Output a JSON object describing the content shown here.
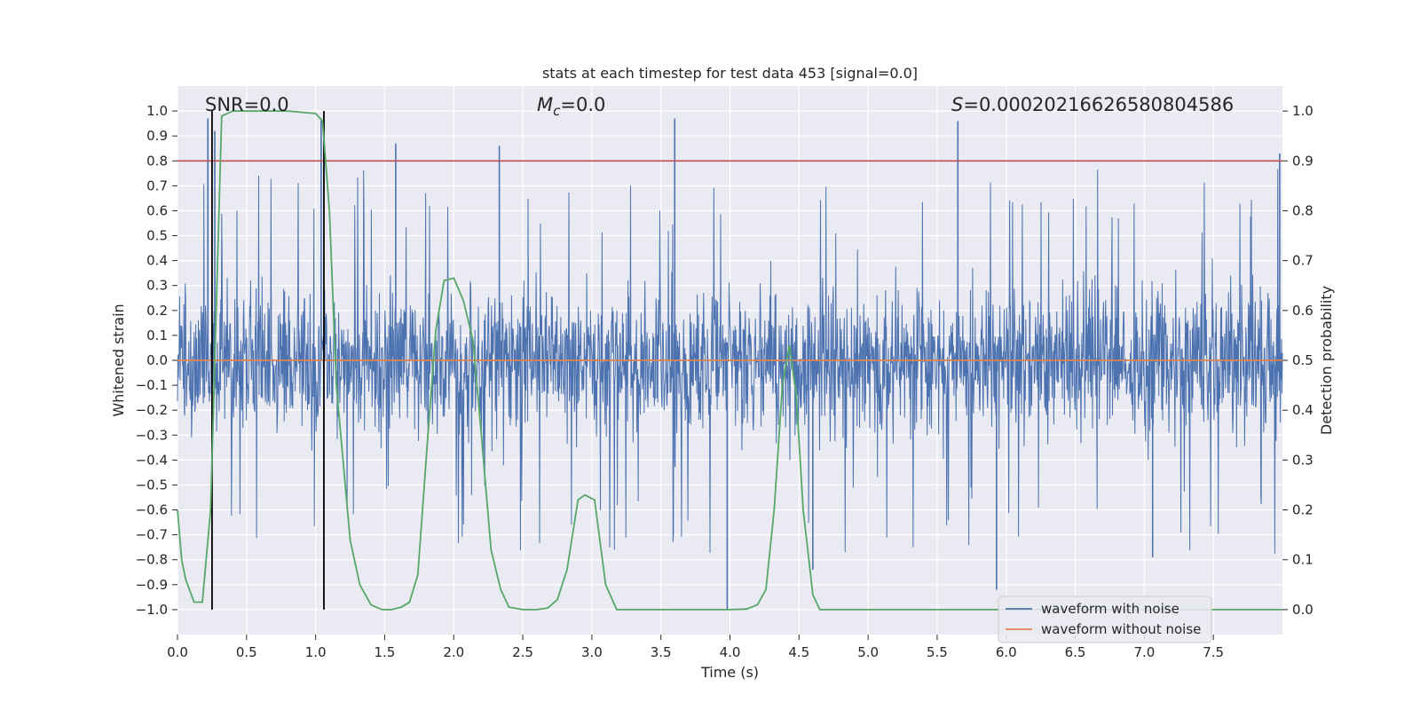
{
  "chart_data": {
    "type": "line",
    "title": "stats at each timestep for test data 453 [signal=0.0]",
    "xlabel": "Time (s)",
    "ylabel": "Whitened strain",
    "y2label": "Detection probability",
    "xlim": [
      0.0,
      8.0
    ],
    "ylim": [
      -1.1,
      1.1
    ],
    "y2lim": [
      -0.05,
      1.05
    ],
    "x_ticks": [
      0.0,
      0.5,
      1.0,
      1.5,
      2.0,
      2.5,
      3.0,
      3.5,
      4.0,
      4.5,
      5.0,
      5.5,
      6.0,
      6.5,
      7.0,
      7.5
    ],
    "x_tick_labels": [
      "0.0",
      "0.5",
      "1.0",
      "1.5",
      "2.0",
      "2.5",
      "3.0",
      "3.5",
      "4.0",
      "4.5",
      "5.0",
      "5.5",
      "6.0",
      "6.5",
      "7.0",
      "7.5"
    ],
    "y_ticks": [
      1.0,
      0.9,
      0.8,
      0.7,
      0.6,
      0.5,
      0.4,
      0.3,
      0.2,
      0.1,
      0.0,
      -0.1,
      -0.2,
      -0.3,
      -0.4,
      -0.5,
      -0.6,
      -0.7,
      -0.8,
      -0.9,
      -1.0
    ],
    "y_tick_labels": [
      "1.0",
      "0.9",
      "0.8",
      "0.7",
      "0.6",
      "0.5",
      "0.4",
      "0.3",
      "0.2",
      "0.1",
      "0.0",
      "−0.1",
      "−0.2",
      "−0.3",
      "−0.4",
      "−0.5",
      "−0.6",
      "−0.7",
      "−0.8",
      "−0.9",
      "−1.0"
    ],
    "y2_ticks": [
      1.0,
      0.9,
      0.8,
      0.7,
      0.6,
      0.5,
      0.4,
      0.3,
      0.2,
      0.1,
      0.0
    ],
    "y2_tick_labels": [
      "1.0",
      "0.9",
      "0.8",
      "0.7",
      "0.6",
      "0.5",
      "0.4",
      "0.3",
      "0.2",
      "0.1",
      "0.0"
    ],
    "annotations": {
      "snr": "SNR=0.0",
      "mc_symbol": "M",
      "mc_sub": "c",
      "mc_value": "=0.0",
      "s_symbol": "S",
      "s_value": "=0.00020216626580804586"
    },
    "threshold_prob": 0.9,
    "vertical_markers_s": [
      0.25,
      1.06
    ],
    "noise_envelope": {
      "typical_abs_amplitude": 0.45,
      "spike_peaks": [
        {
          "t": 0.22,
          "v": 0.97
        },
        {
          "t": 0.27,
          "v": 0.92
        },
        {
          "t": 1.04,
          "v": 0.97
        },
        {
          "t": 3.6,
          "v": 0.97
        },
        {
          "t": 5.65,
          "v": 0.96
        },
        {
          "t": 7.98,
          "v": 0.83
        },
        {
          "t": 3.98,
          "v": -1.0
        },
        {
          "t": 5.93,
          "v": -0.92
        },
        {
          "t": 7.06,
          "v": -0.79
        },
        {
          "t": 1.58,
          "v": 0.87
        },
        {
          "t": 2.33,
          "v": 0.86
        },
        {
          "t": 4.6,
          "v": -0.84
        }
      ]
    },
    "series": [
      {
        "name": "waveform with noise",
        "color": "#4c72b0",
        "kind": "noise"
      },
      {
        "name": "waveform without noise",
        "color": "#dd8452",
        "values": [
          0.0,
          0.0
        ]
      },
      {
        "name": "detection probability",
        "color": "#55a868",
        "axis": "right",
        "x": [
          0.0,
          0.03,
          0.06,
          0.12,
          0.18,
          0.24,
          0.28,
          0.32,
          0.4,
          0.6,
          0.8,
          1.0,
          1.05,
          1.1,
          1.15,
          1.25,
          1.32,
          1.4,
          1.48,
          1.55,
          1.62,
          1.68,
          1.74,
          1.8,
          1.87,
          1.93,
          2.0,
          2.07,
          2.14,
          2.2,
          2.27,
          2.34,
          2.4,
          2.5,
          2.6,
          2.68,
          2.75,
          2.82,
          2.9,
          2.95,
          3.02,
          3.1,
          3.18,
          3.3,
          3.5,
          3.8,
          4.0,
          4.12,
          4.2,
          4.26,
          4.32,
          4.38,
          4.43,
          4.48,
          4.53,
          4.6,
          4.65,
          4.7,
          5.0,
          6.0,
          7.0,
          8.0
        ],
        "values": [
          0.2,
          0.1,
          0.06,
          0.015,
          0.015,
          0.2,
          0.6,
          0.99,
          1.0,
          1.0,
          1.0,
          0.995,
          0.98,
          0.8,
          0.45,
          0.14,
          0.05,
          0.01,
          0.0,
          0.0,
          0.005,
          0.015,
          0.07,
          0.3,
          0.56,
          0.66,
          0.665,
          0.62,
          0.54,
          0.35,
          0.12,
          0.04,
          0.005,
          0.0,
          0.0,
          0.003,
          0.02,
          0.08,
          0.22,
          0.23,
          0.22,
          0.05,
          0.0,
          0.0,
          0.0,
          0.0,
          0.0,
          0.001,
          0.01,
          0.04,
          0.2,
          0.45,
          0.53,
          0.43,
          0.2,
          0.03,
          0.0,
          0.0,
          0.0,
          0.0,
          0.0,
          0.0
        ]
      }
    ],
    "legend": {
      "placement": "lower-right",
      "entries": [
        "waveform with noise",
        "waveform without noise"
      ]
    },
    "colors": {
      "plot_bg": "#eaeaf2",
      "grid": "#ffffff",
      "noise": "#4c72b0",
      "clean": "#dd8452",
      "prob": "#55a868",
      "threshold": "#c44e52",
      "markers": "#000000"
    }
  }
}
